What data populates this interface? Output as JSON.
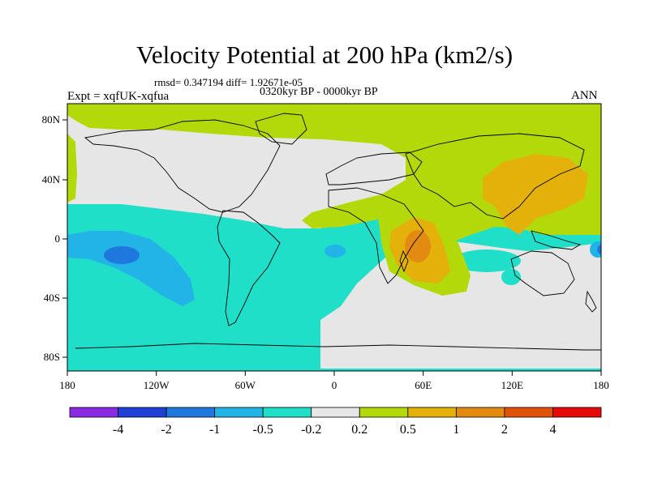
{
  "header": {
    "title": "Velocity Potential at 200 hPa (km2/s)",
    "stats": "rmsd= 0.347194 diff= 1.92671e-05",
    "experiment": "Expt = xqfUK-xqfua",
    "period": "0320kyr BP - 0000kyr BP",
    "season": "ANN"
  },
  "map": {
    "projection": "cylindrical-equidistant",
    "lon_range": [
      -180,
      180
    ],
    "lat_range": [
      -90,
      90
    ],
    "lon_tick_labels": [
      "180",
      "120W",
      "60W",
      "0",
      "60E",
      "120E",
      "180"
    ],
    "lat_tick_labels": [
      "80N",
      "40N",
      "0",
      "40S",
      "80S"
    ]
  },
  "colorbar": {
    "labels": [
      "-4",
      "-2",
      "-1",
      "-0.5",
      "-0.2",
      "0.2",
      "0.5",
      "1",
      "2",
      "4"
    ],
    "colors": [
      "#8a2be2",
      "#1f3fd6",
      "#1e78dd",
      "#22b4e6",
      "#20dfc8",
      "#e6e6e6",
      "#b4d90a",
      "#e3b10a",
      "#e38a10",
      "#e0520a",
      "#e60a0a"
    ]
  }
}
